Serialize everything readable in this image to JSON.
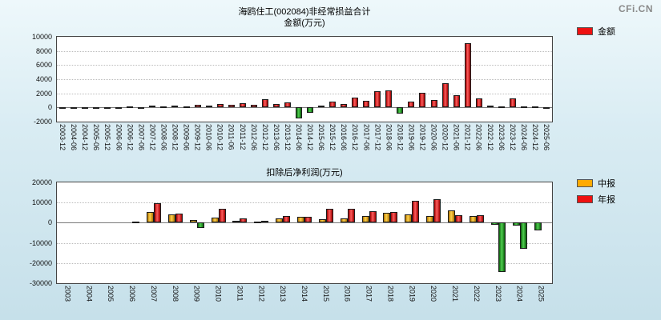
{
  "brand": "CFi.CN",
  "chart_data": [
    {
      "type": "bar",
      "title": "海鸥住工(002084)非经常损益合计",
      "subtitle": "金额(万元)",
      "xlabel": "",
      "ylabel": "",
      "ylim": [
        -2000,
        10000
      ],
      "yticks": [
        10000,
        8000,
        6000,
        4000,
        2000,
        0,
        -2000
      ],
      "grid": true,
      "legend_position": "top-right",
      "negative_color": "#1a9a1a",
      "categories": [
        "2003-12",
        "2004-06",
        "2004-12",
        "2005-06",
        "2005-12",
        "2006-06",
        "2006-12",
        "2007-06",
        "2007-12",
        "2008-06",
        "2008-12",
        "2009-06",
        "2009-12",
        "2010-06",
        "2010-12",
        "2011-06",
        "2011-12",
        "2012-06",
        "2012-12",
        "2013-06",
        "2013-12",
        "2014-06",
        "2014-12",
        "2015-06",
        "2015-12",
        "2016-06",
        "2016-12",
        "2017-06",
        "2017-12",
        "2018-06",
        "2018-12",
        "2019-06",
        "2019-12",
        "2020-06",
        "2020-12",
        "2021-06",
        "2021-12",
        "2022-06",
        "2022-12",
        "2023-06",
        "2023-12",
        "2024-06",
        "2024-12",
        "2025-06"
      ],
      "series": [
        {
          "name": "金额",
          "color": "#ee1111",
          "values": [
            30,
            20,
            80,
            30,
            90,
            60,
            130,
            90,
            280,
            180,
            260,
            200,
            380,
            280,
            450,
            350,
            650,
            400,
            1150,
            450,
            750,
            -1500,
            -800,
            300,
            800,
            500,
            1350,
            900,
            2350,
            2400,
            -900,
            800,
            2100,
            1100,
            3400,
            1700,
            9100,
            1300,
            250,
            120,
            1250,
            120,
            180,
            60
          ]
        }
      ]
    },
    {
      "type": "bar",
      "title": "扣除后净利润(万元)",
      "xlabel": "",
      "ylabel": "",
      "ylim": [
        -30000,
        20000
      ],
      "yticks": [
        20000,
        10000,
        0,
        -10000,
        -20000,
        -30000
      ],
      "grid": true,
      "legend_position": "top-right",
      "negative_color": "#1a9a1a",
      "categories": [
        "2003",
        "2004",
        "2005",
        "2006",
        "2007",
        "2008",
        "2009",
        "2010",
        "2011",
        "2012",
        "2013",
        "2014",
        "2015",
        "2016",
        "2017",
        "2018",
        "2019",
        "2020",
        "2021",
        "2022",
        "2023",
        "2024",
        "2025"
      ],
      "series": [
        {
          "name": "中报",
          "color": "#ffaa00",
          "values": [
            null,
            null,
            null,
            null,
            5200,
            4300,
            1200,
            2400,
            1000,
            600,
            2000,
            2800,
            1800,
            2200,
            3400,
            4800,
            4000,
            3500,
            6300,
            3500,
            -900,
            -1600,
            -4000
          ]
        },
        {
          "name": "年报",
          "color": "#ee1111",
          "values": [
            null,
            null,
            null,
            400,
            9500,
            4700,
            -2500,
            7000,
            2000,
            900,
            3400,
            3000,
            6800,
            7000,
            5800,
            5200,
            10800,
            11800,
            3600,
            3800,
            -24500,
            -13000,
            null
          ]
        }
      ]
    }
  ]
}
